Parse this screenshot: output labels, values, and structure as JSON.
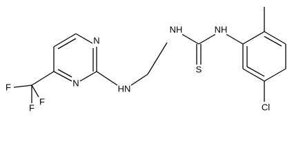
{
  "atoms": [
    {
      "label": "N"
    },
    {
      "label": "N"
    },
    {
      "label": "F"
    },
    {
      "label": "F"
    },
    {
      "label": "F"
    },
    {
      "label": "HN"
    },
    {
      "label": "NH"
    },
    {
      "label": "NH"
    },
    {
      "label": "S"
    },
    {
      "label": "Cl"
    }
  ]
}
